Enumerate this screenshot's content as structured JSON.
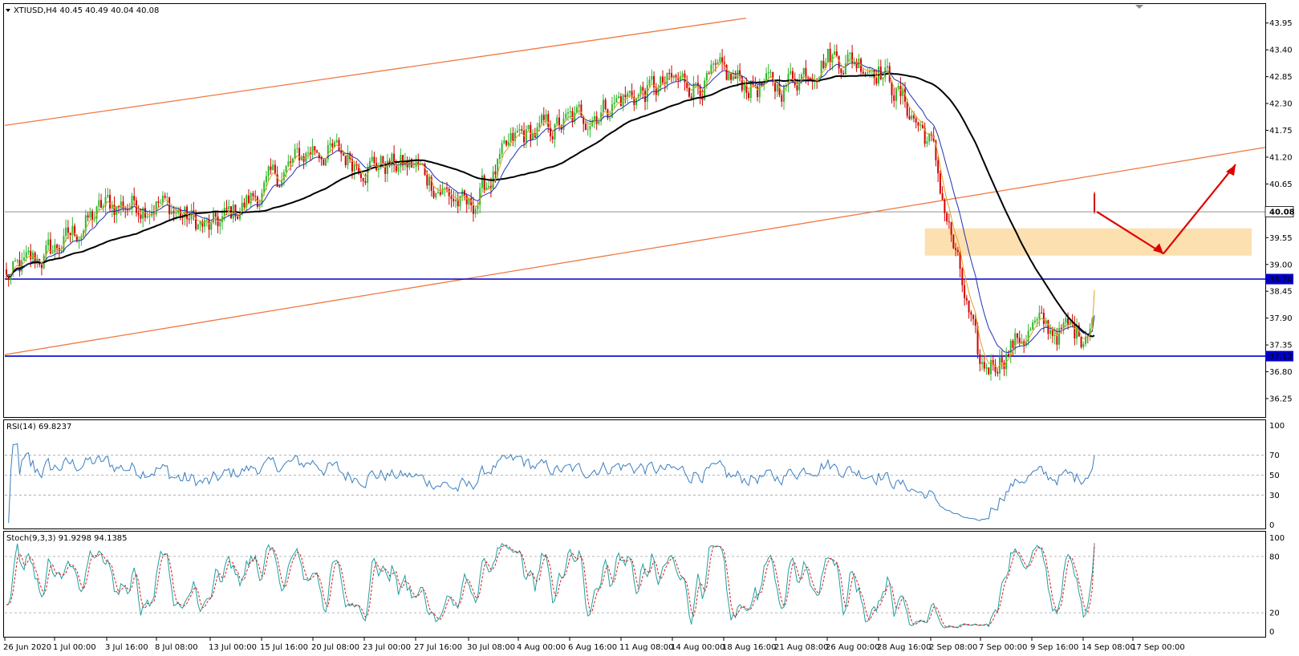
{
  "main_pane": {
    "header": "XTIUSD,H4  40.45 40.49 40.04 40.08",
    "price_ticks": [
      "43.95",
      "43.40",
      "42.85",
      "42.30",
      "41.75",
      "41.20",
      "40.65",
      "39.55",
      "39.00",
      "38.45",
      "37.90",
      "37.35",
      "36.80",
      "36.25"
    ],
    "current_price": "40.08",
    "level_labels": [
      "38.70",
      "37.12"
    ]
  },
  "rsi_pane": {
    "header": "RSI(14) 69.8237",
    "ticks": [
      "100",
      "70",
      "50",
      "30",
      "0"
    ]
  },
  "stoch_pane": {
    "header": "Stoch(9,3,3) 91.9298 94.1385",
    "ticks": [
      "100",
      "80",
      "20",
      "0"
    ]
  },
  "time_axis": {
    "labels": [
      "26 Jun 2020",
      "1 Jul 00:00",
      "3 Jul 16:00",
      "8 Jul 08:00",
      "13 Jul 00:00",
      "15 Jul 16:00",
      "20 Jul 08:00",
      "23 Jul 00:00",
      "27 Jul 16:00",
      "30 Jul 08:00",
      "4 Aug 00:00",
      "6 Aug 16:00",
      "11 Aug 08:00",
      "14 Aug 00:00",
      "18 Aug 16:00",
      "21 Aug 08:00",
      "26 Aug 00:00",
      "28 Aug 16:00",
      "2 Sep 08:00",
      "7 Sep 00:00",
      "9 Sep 16:00",
      "14 Sep 08:00",
      "17 Sep 00:00"
    ]
  },
  "colors": {
    "bull_candle": "#2eb82e",
    "bear_candle": "#d40000",
    "support_line": "#0000c8",
    "channel_line": "#f07840",
    "ma_long": "#000000",
    "ma_mid": "#2030b0",
    "ma_short": "#e0a020",
    "zone_fill": "#fde0b0",
    "rsi_line": "#3a7ec0",
    "stoch_main": "#20a0a0",
    "stoch_signal": "#d02020",
    "arrow": "#e00000"
  },
  "chart_data": {
    "type": "candlestick",
    "symbol": "XTIUSD",
    "timeframe": "H4",
    "last_bar": {
      "open": 40.45,
      "high": 40.49,
      "low": 40.04,
      "close": 40.08
    },
    "x": [
      "26 Jun 2020",
      "1 Jul",
      "3 Jul",
      "8 Jul",
      "13 Jul",
      "15 Jul",
      "20 Jul",
      "23 Jul",
      "27 Jul",
      "30 Jul",
      "4 Aug",
      "6 Aug",
      "11 Aug",
      "14 Aug",
      "18 Aug",
      "21 Aug",
      "26 Aug",
      "28 Aug",
      "2 Sep",
      "7 Sep",
      "9 Sep",
      "14 Sep",
      "17 Sep"
    ],
    "close_path_points": [
      [
        "26 Jun 2020",
        38.7
      ],
      [
        "1 Jul",
        39.3
      ],
      [
        "3 Jul",
        40.2
      ],
      [
        "8 Jul",
        40.3
      ],
      [
        "13 Jul",
        39.7
      ],
      [
        "15 Jul",
        40.5
      ],
      [
        "20 Jul",
        41.4
      ],
      [
        "23 Jul",
        41.1
      ],
      [
        "27 Jul",
        41.0
      ],
      [
        "30 Jul",
        40.1
      ],
      [
        "4 Aug",
        41.6
      ],
      [
        "6 Aug",
        41.9
      ],
      [
        "11 Aug",
        42.4
      ],
      [
        "14 Aug",
        42.7
      ],
      [
        "18 Aug",
        42.8
      ],
      [
        "21 Aug",
        42.6
      ],
      [
        "26 Aug",
        43.3
      ],
      [
        "28 Aug",
        43.1
      ],
      [
        "2 Sep",
        41.5
      ],
      [
        "7 Sep",
        36.8
      ],
      [
        "9 Sep",
        37.7
      ],
      [
        "14 Sep",
        37.6
      ],
      [
        "17 Sep",
        40.08
      ]
    ],
    "ylim": [
      36.1,
      44.1
    ],
    "horizontal_levels": [
      38.7,
      37.12
    ],
    "supply_zone": [
      39.18,
      39.74
    ],
    "channel": {
      "lower": [
        [
          "26 Jun 2020",
          37.15
        ],
        [
          "20 Sep",
          41.4
        ]
      ],
      "upper": [
        [
          "26 Jun 2020",
          41.85
        ],
        [
          "11 Aug",
          44.05
        ]
      ]
    },
    "rsi": {
      "period": 14,
      "value": 69.8237,
      "levels": [
        70,
        50,
        30
      ],
      "range": [
        0,
        100
      ]
    },
    "stochastic": {
      "params": "9,3,3",
      "main": 91.9298,
      "signal": 94.1385,
      "levels": [
        80,
        20
      ],
      "range": [
        0,
        100
      ]
    }
  }
}
